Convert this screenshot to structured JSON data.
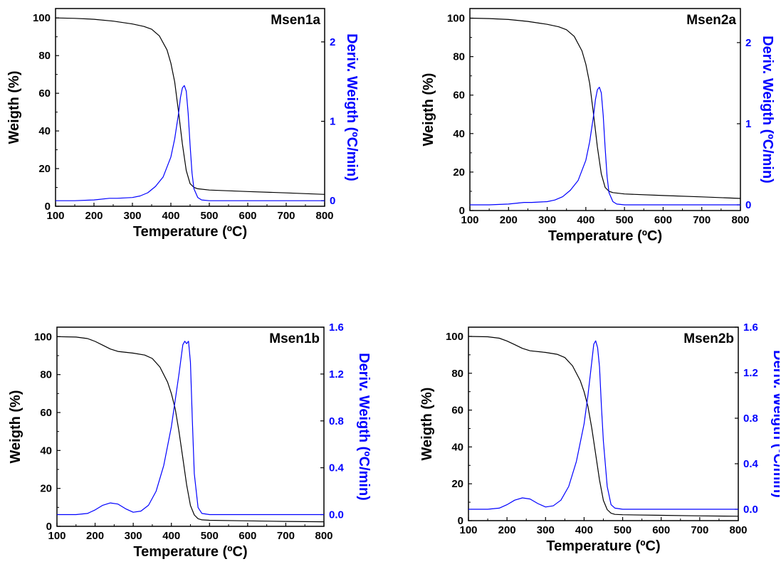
{
  "colors": {
    "weight": "#000000",
    "deriv": "#0000ff",
    "axis": "#000000"
  },
  "chart_data": [
    {
      "type": "line",
      "title": "Msen1a",
      "xlabel": "Temperature (ºC)",
      "ylabel": "Weigth (%)",
      "y2label": "Deriv. Weigth (ºC/min)",
      "xlim": [
        100,
        800
      ],
      "ylim": [
        0,
        105
      ],
      "y2lim": [
        -0.07,
        2.42
      ],
      "x_ticks": [
        "100",
        "200",
        "300",
        "400",
        "500",
        "600",
        "700",
        "800"
      ],
      "y_ticks": [
        "0",
        "20",
        "40",
        "60",
        "80",
        "100"
      ],
      "y2_ticks": [
        "0",
        "1",
        "2"
      ],
      "series": [
        {
          "axis": "left",
          "x": [
            100,
            150,
            200,
            250,
            300,
            330,
            350,
            370,
            390,
            400,
            410,
            420,
            430,
            440,
            450,
            460,
            470,
            500,
            600,
            700,
            800
          ],
          "y": [
            100,
            99.8,
            99.3,
            98.3,
            96.8,
            95.5,
            94,
            90.5,
            83,
            76,
            66,
            50,
            33,
            19,
            12,
            10,
            9.3,
            8.6,
            7.8,
            7.1,
            6.3
          ]
        },
        {
          "axis": "right",
          "x": [
            100,
            150,
            200,
            240,
            260,
            300,
            320,
            340,
            360,
            380,
            400,
            410,
            420,
            425,
            430,
            435,
            440,
            445,
            450,
            455,
            460,
            470,
            480,
            500,
            600,
            700,
            800
          ],
          "y": [
            0,
            0,
            0.01,
            0.03,
            0.03,
            0.04,
            0.06,
            0.1,
            0.18,
            0.3,
            0.55,
            0.78,
            1.1,
            1.3,
            1.42,
            1.45,
            1.38,
            1.1,
            0.7,
            0.35,
            0.15,
            0.04,
            0.01,
            0,
            0,
            0,
            0
          ]
        }
      ]
    },
    {
      "type": "line",
      "title": "Msen2a",
      "xlabel": "Temperature (ºC)",
      "ylabel": "Weigth (%)",
      "y2label": "Deriv. Weigth (ºC/min)",
      "xlim": [
        100,
        800
      ],
      "ylim": [
        0,
        105
      ],
      "y2lim": [
        -0.07,
        2.42
      ],
      "x_ticks": [
        "100",
        "200",
        "300",
        "400",
        "500",
        "600",
        "700",
        "800"
      ],
      "y_ticks": [
        "0",
        "20",
        "40",
        "60",
        "80",
        "100"
      ],
      "y2_ticks": [
        "0",
        "1",
        "2"
      ],
      "series": [
        {
          "axis": "left",
          "x": [
            100,
            150,
            200,
            250,
            300,
            330,
            350,
            370,
            390,
            400,
            410,
            420,
            430,
            440,
            450,
            460,
            470,
            500,
            600,
            700,
            800
          ],
          "y": [
            100,
            99.8,
            99.3,
            98.3,
            96.8,
            95.5,
            94,
            90.5,
            83,
            76,
            66,
            50,
            33,
            19,
            12,
            10,
            9.3,
            8.6,
            7.8,
            7.1,
            6.3
          ]
        },
        {
          "axis": "right",
          "x": [
            100,
            150,
            200,
            240,
            260,
            300,
            320,
            340,
            360,
            380,
            400,
            410,
            420,
            425,
            430,
            435,
            440,
            445,
            450,
            455,
            460,
            470,
            480,
            500,
            600,
            700,
            800
          ],
          "y": [
            0,
            0,
            0.01,
            0.03,
            0.03,
            0.04,
            0.06,
            0.1,
            0.18,
            0.3,
            0.55,
            0.78,
            1.1,
            1.3,
            1.42,
            1.45,
            1.38,
            1.1,
            0.7,
            0.35,
            0.15,
            0.04,
            0.01,
            0,
            0,
            0,
            0
          ]
        }
      ]
    },
    {
      "type": "line",
      "title": "Msen1b",
      "xlabel": "Temperature (ºC)",
      "ylabel": "Weigth (%)",
      "y2label": "Deriv. Weigth (ºC/min)",
      "xlim": [
        100,
        800
      ],
      "ylim": [
        0,
        105
      ],
      "y2lim": [
        -0.1,
        1.6
      ],
      "x_ticks": [
        "100",
        "200",
        "300",
        "400",
        "500",
        "600",
        "700",
        "800"
      ],
      "y_ticks": [
        "0",
        "20",
        "40",
        "60",
        "80",
        "100"
      ],
      "y2_ticks": [
        "0.0",
        "0.4",
        "0.8",
        "1.2",
        "1.6"
      ],
      "series": [
        {
          "axis": "left",
          "x": [
            100,
            150,
            180,
            200,
            220,
            240,
            260,
            300,
            330,
            350,
            370,
            390,
            400,
            410,
            420,
            430,
            440,
            450,
            460,
            470,
            480,
            500,
            600,
            700,
            800
          ],
          "y": [
            100,
            99.8,
            99,
            97.5,
            95.5,
            93.5,
            92.2,
            91.3,
            90.3,
            88.5,
            84,
            76,
            70,
            62,
            50,
            36,
            22,
            11,
            6,
            4,
            3.4,
            3.2,
            2.9,
            2.6,
            2.4
          ]
        },
        {
          "axis": "right",
          "x": [
            100,
            150,
            180,
            200,
            220,
            240,
            260,
            280,
            300,
            320,
            340,
            360,
            380,
            400,
            420,
            430,
            435,
            440,
            445,
            450,
            455,
            460,
            470,
            480,
            500,
            600,
            700,
            800
          ],
          "y": [
            0,
            0,
            0.01,
            0.04,
            0.08,
            0.1,
            0.09,
            0.05,
            0.02,
            0.03,
            0.08,
            0.2,
            0.42,
            0.75,
            1.2,
            1.45,
            1.48,
            1.46,
            1.48,
            1.3,
            0.8,
            0.35,
            0.06,
            0.01,
            0,
            0,
            0,
            0
          ]
        }
      ]
    },
    {
      "type": "line",
      "title": "Msen2b",
      "xlabel": "Temperature (ºC)",
      "ylabel": "Weigth (%)",
      "y2label": "Deriv. Weigth (ºC/min)",
      "xlim": [
        100,
        800
      ],
      "ylim": [
        0,
        105
      ],
      "y2lim": [
        -0.1,
        1.6
      ],
      "x_ticks": [
        "100",
        "200",
        "300",
        "400",
        "500",
        "600",
        "700",
        "800"
      ],
      "y_ticks": [
        "0",
        "20",
        "40",
        "60",
        "80",
        "100"
      ],
      "y2_ticks": [
        "0.0",
        "0.4",
        "0.8",
        "1.2",
        "1.6"
      ],
      "series": [
        {
          "axis": "left",
          "x": [
            100,
            150,
            180,
            200,
            220,
            240,
            260,
            300,
            330,
            350,
            370,
            390,
            400,
            410,
            420,
            430,
            440,
            450,
            460,
            470,
            480,
            500,
            600,
            700,
            800
          ],
          "y": [
            100,
            99.8,
            99,
            97.5,
            95.5,
            93.5,
            92.2,
            91.3,
            90.3,
            88.5,
            84,
            76,
            70,
            62,
            50,
            36,
            22,
            11,
            6,
            4,
            3.4,
            3.2,
            2.9,
            2.6,
            2.4
          ]
        },
        {
          "axis": "right",
          "x": [
            100,
            150,
            180,
            200,
            220,
            240,
            260,
            280,
            300,
            320,
            340,
            360,
            380,
            400,
            410,
            420,
            425,
            430,
            435,
            440,
            445,
            450,
            460,
            470,
            480,
            500,
            600,
            700,
            800
          ],
          "y": [
            0,
            0,
            0.01,
            0.04,
            0.08,
            0.1,
            0.09,
            0.05,
            0.02,
            0.03,
            0.08,
            0.2,
            0.42,
            0.75,
            1.0,
            1.3,
            1.45,
            1.48,
            1.42,
            1.25,
            0.9,
            0.6,
            0.2,
            0.04,
            0.01,
            0,
            0,
            0,
            0
          ]
        }
      ]
    }
  ]
}
